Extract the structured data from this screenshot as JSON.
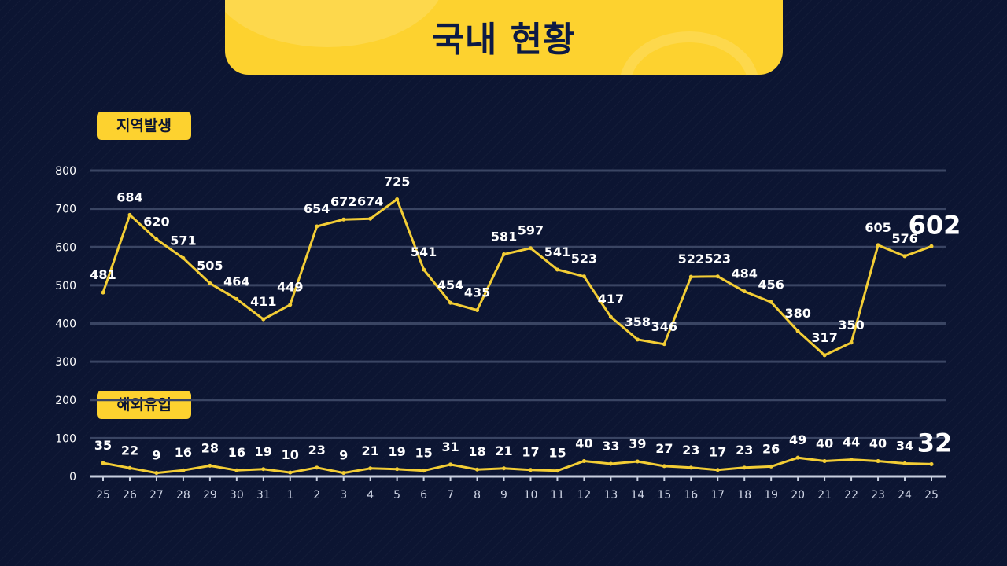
{
  "header": {
    "title": "국내 현황"
  },
  "tags": {
    "local": "지역발생",
    "imported": "해외유입"
  },
  "colors": {
    "accent": "#fdd22f",
    "background": "#0c1532",
    "line": "#f3cd35",
    "grid": "#3a4563",
    "text": "#ffffff",
    "axis_text": "#cfd5e5"
  },
  "chart_data": {
    "type": "line",
    "categories": [
      "25",
      "26",
      "27",
      "28",
      "29",
      "30",
      "31",
      "1",
      "2",
      "3",
      "4",
      "5",
      "6",
      "7",
      "8",
      "9",
      "10",
      "11",
      "12",
      "13",
      "14",
      "15",
      "16",
      "17",
      "18",
      "19",
      "20",
      "21",
      "22",
      "23",
      "24",
      "25"
    ],
    "ylim": [
      0,
      800
    ],
    "yticks": [
      0,
      100,
      200,
      300,
      400,
      500,
      600,
      700,
      800
    ],
    "grid": true,
    "series": [
      {
        "name": "지역발생",
        "values": [
          481,
          684,
          620,
          571,
          505,
          464,
          411,
          449,
          654,
          672,
          674,
          725,
          541,
          454,
          435,
          581,
          597,
          541,
          523,
          417,
          358,
          346,
          522,
          523,
          484,
          456,
          380,
          317,
          350,
          605,
          576,
          602
        ],
        "highlight_last": true
      },
      {
        "name": "해외유입",
        "values": [
          35,
          22,
          9,
          16,
          28,
          16,
          19,
          10,
          23,
          9,
          21,
          19,
          15,
          31,
          18,
          21,
          17,
          15,
          40,
          33,
          39,
          27,
          23,
          17,
          23,
          26,
          49,
          40,
          44,
          40,
          34,
          32
        ],
        "highlight_last": true
      }
    ]
  }
}
